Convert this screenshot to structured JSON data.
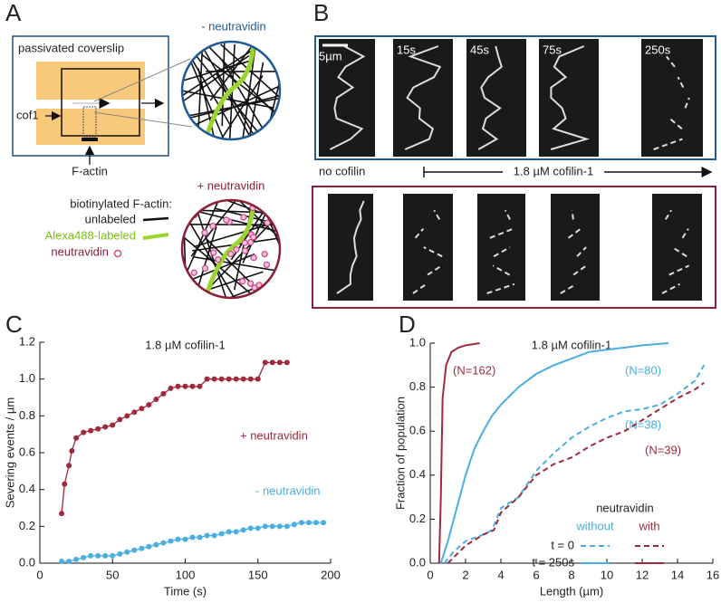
{
  "panel_labels": [
    "A",
    "B",
    "C",
    "D"
  ],
  "panel_a": {
    "coverslip": "passivated coverslip",
    "inlet": "cof1",
    "filament": "F-actin",
    "top_circle": "- neutravidin",
    "bottom_circle": "+ neutravidin",
    "legend_title": "biotinylated F-actin:",
    "legend": [
      "unlabeled",
      "Alexa488-labeled",
      "neutravidin"
    ]
  },
  "panel_b": {
    "scale_bar": "5µm",
    "times": [
      "15s",
      "45s",
      "75s",
      "250s"
    ],
    "control": "no cofilin",
    "treatment": "1.8 µM cofilin-1"
  },
  "chart_data": [
    {
      "type": "line",
      "title": "1.8 µM cofilin-1",
      "x_label": "Time (s)",
      "y_label": "Severing events / µm",
      "xlim": [
        0,
        200
      ],
      "xticks": [
        0,
        50,
        100,
        150,
        200
      ],
      "ylim": [
        0,
        1.2
      ],
      "yticks": [
        {
          "value": 0,
          "label": "0.0"
        },
        0.2,
        0.4,
        0.6,
        0.8,
        {
          "value": 1,
          "label": "1.0"
        },
        1.2
      ],
      "markers": true,
      "series": [
        {
          "name": "+ neutravidin",
          "color": "#9e2a3c",
          "x": [
            15,
            17,
            20,
            22,
            25,
            30,
            35,
            40,
            45,
            50,
            55,
            60,
            65,
            70,
            75,
            80,
            85,
            90,
            95,
            100,
            105,
            110,
            115,
            120,
            125,
            130,
            135,
            140,
            145,
            150,
            155,
            160,
            165,
            170
          ],
          "values": [
            0.27,
            0.43,
            0.53,
            0.61,
            0.68,
            0.71,
            0.72,
            0.73,
            0.74,
            0.75,
            0.78,
            0.8,
            0.82,
            0.84,
            0.86,
            0.89,
            0.92,
            0.95,
            0.96,
            0.96,
            0.96,
            0.96,
            1.0,
            1.0,
            1.0,
            1.0,
            1.0,
            1.0,
            1.0,
            1.0,
            1.09,
            1.09,
            1.09,
            1.09
          ]
        },
        {
          "name": "- neutravidin",
          "color": "#4aaee0",
          "x": [
            15,
            20,
            25,
            30,
            35,
            40,
            45,
            50,
            55,
            60,
            65,
            70,
            75,
            80,
            85,
            90,
            95,
            100,
            105,
            110,
            115,
            120,
            125,
            130,
            135,
            140,
            145,
            150,
            155,
            160,
            165,
            170,
            175,
            180,
            185,
            190,
            195
          ],
          "values": [
            0.01,
            0.01,
            0.02,
            0.03,
            0.04,
            0.04,
            0.04,
            0.04,
            0.05,
            0.06,
            0.07,
            0.08,
            0.09,
            0.1,
            0.11,
            0.12,
            0.13,
            0.13,
            0.14,
            0.14,
            0.15,
            0.15,
            0.16,
            0.17,
            0.17,
            0.18,
            0.19,
            0.19,
            0.2,
            0.2,
            0.2,
            0.2,
            0.21,
            0.22,
            0.22,
            0.22,
            0.22
          ]
        }
      ]
    },
    {
      "type": "line",
      "title": "1.8 µM cofilin-1",
      "x_label": "Length (µm)",
      "y_label": "Fraction of population",
      "xlim": [
        0,
        16
      ],
      "xticks": [
        0,
        2,
        4,
        6,
        8,
        10,
        12,
        14,
        16
      ],
      "ylim": [
        0,
        1
      ],
      "yticks": [
        {
          "value": 0,
          "label": "0.0"
        },
        0.2,
        0.4,
        0.6,
        0.8,
        {
          "value": 1,
          "label": "1.0"
        }
      ],
      "markers": false,
      "legend": {
        "title": "neutravidin",
        "columns": [
          "without",
          "with"
        ],
        "rows": [
          "t = 0",
          "t = 250s"
        ]
      },
      "series": [
        {
          "label": "(N=162)",
          "color": "#9e2a3c",
          "dashed": false,
          "x": [
            0.5,
            0.6,
            0.7,
            0.9,
            1.2,
            1.6,
            2,
            2.8
          ],
          "values": [
            0,
            0.3,
            0.75,
            0.9,
            0.96,
            0.98,
            0.99,
            1.0
          ]
        },
        {
          "label": "(N=80)",
          "color": "#4aaee0",
          "dashed": false,
          "x": [
            0.6,
            1,
            1.5,
            2,
            2.5,
            3,
            3.5,
            4,
            5,
            6,
            7,
            8,
            9,
            10,
            11,
            12,
            13.5
          ],
          "values": [
            0,
            0.1,
            0.25,
            0.4,
            0.52,
            0.6,
            0.67,
            0.72,
            0.8,
            0.86,
            0.9,
            0.93,
            0.96,
            0.97,
            0.98,
            0.99,
            1.0
          ]
        },
        {
          "label": "(N=38)",
          "color": "#4aaee0",
          "dashed": true,
          "x": [
            0.8,
            1.3,
            2,
            3,
            3.5,
            4,
            5,
            6,
            7,
            8,
            9,
            10,
            11,
            12,
            13,
            14,
            15,
            15.5
          ],
          "values": [
            0,
            0.05,
            0.1,
            0.13,
            0.15,
            0.25,
            0.3,
            0.42,
            0.5,
            0.57,
            0.62,
            0.66,
            0.69,
            0.7,
            0.72,
            0.77,
            0.83,
            0.9
          ]
        },
        {
          "label": "(N=39)",
          "color": "#9e2a3c",
          "dashed": true,
          "x": [
            1,
            2,
            3,
            3.6,
            4,
            5,
            6,
            7,
            8,
            9,
            10,
            11,
            12,
            13,
            14,
            15,
            15.5
          ],
          "values": [
            0,
            0.08,
            0.13,
            0.15,
            0.23,
            0.3,
            0.4,
            0.45,
            0.48,
            0.53,
            0.57,
            0.6,
            0.65,
            0.7,
            0.75,
            0.79,
            0.82
          ]
        }
      ]
    }
  ]
}
